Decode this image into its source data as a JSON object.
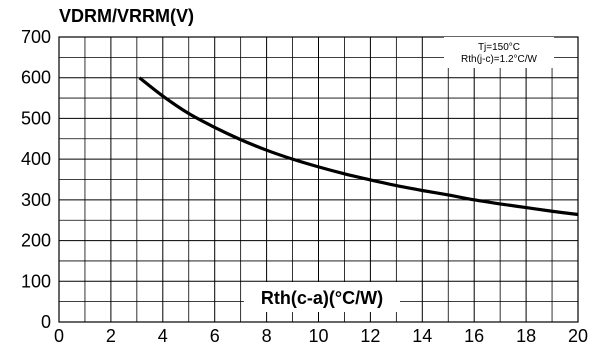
{
  "chart_data": {
    "type": "line",
    "ylabel": "VDRM/VRRM(V)",
    "xlabel": "Rth(c-a)(°C/W)",
    "xlim": [
      0,
      20
    ],
    "ylim": [
      0,
      700
    ],
    "x_ticks": [
      0,
      2,
      4,
      6,
      8,
      10,
      12,
      14,
      16,
      18,
      20
    ],
    "y_ticks": [
      0,
      100,
      200,
      300,
      400,
      500,
      600,
      700
    ],
    "x_minor_step": 1,
    "y_minor_step": 50,
    "grid": true,
    "annotation_lines": [
      "Tj=150°C",
      "Rth(j-c)=1.2°C/W"
    ],
    "annotation_placement": "top-right",
    "series": [
      {
        "color": "#000000",
        "x": [
          3.1,
          4,
          5,
          6,
          7,
          8,
          9,
          10,
          11,
          12,
          13,
          14,
          15,
          16,
          17,
          18,
          19,
          20
        ],
        "y": [
          600,
          555,
          512,
          478,
          448,
          422,
          400,
          381,
          364,
          349,
          335,
          323,
          312,
          300,
          290,
          281,
          272,
          264
        ]
      }
    ]
  }
}
